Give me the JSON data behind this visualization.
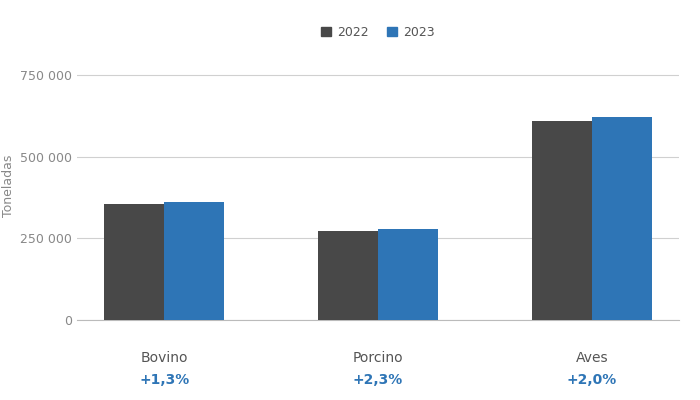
{
  "categories": [
    "Bovino",
    "Porcino",
    "Aves"
  ],
  "values_2022": [
    355000,
    272000,
    610000
  ],
  "values_2023": [
    360000,
    278000,
    622000
  ],
  "pct_changes": [
    "+1,3%",
    "+2,3%",
    "+2,0%"
  ],
  "color_2022": "#484848",
  "color_2023": "#2E75B6",
  "color_pct": "#2E75B6",
  "ylabel": "Toneladas",
  "ylim": [
    0,
    820000
  ],
  "yticks": [
    0,
    250000,
    500000,
    750000
  ],
  "ytick_labels": [
    "0",
    "250 000",
    "500 000",
    "750 000"
  ],
  "legend_2022": "2022",
  "legend_2023": "2023",
  "bar_width": 0.28,
  "bg_color": "#ffffff",
  "grid_color": "#d0d0d0"
}
